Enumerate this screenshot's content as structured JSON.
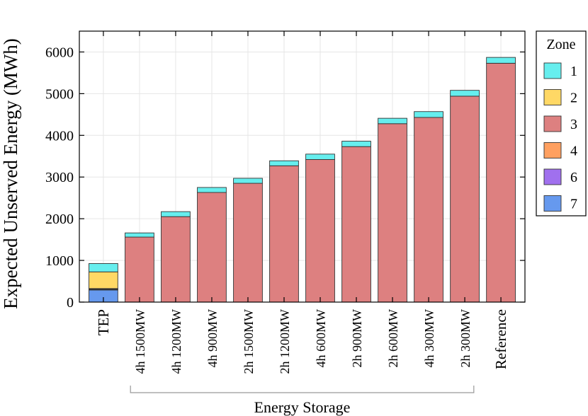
{
  "chart_data": {
    "type": "bar",
    "stacked": true,
    "title": "",
    "xlabel": "",
    "ylabel": "Expected Unserved Energy (MWh)",
    "ylim": [
      0,
      6500
    ],
    "yticks": [
      0,
      1000,
      2000,
      3000,
      4000,
      5000,
      6000
    ],
    "grid": true,
    "categories": [
      "TEP",
      "4h 1500MW",
      "4h 1200MW",
      "4h 900MW",
      "2h 1500MW",
      "2h 1200MW",
      "4h 600MW",
      "2h 900MW",
      "2h 600MW",
      "4h 300MW",
      "2h 300MW",
      "Reference"
    ],
    "group_label": {
      "text": "Energy Storage",
      "from": "4h 1500MW",
      "to": "2h 300MW"
    },
    "legend": {
      "title": "Zone",
      "position": "right"
    },
    "series": [
      {
        "name": "7",
        "color": "#6699ee",
        "values": [
          290,
          0,
          0,
          0,
          0,
          0,
          0,
          0,
          0,
          0,
          0,
          0
        ]
      },
      {
        "name": "6",
        "color": "#a070ee",
        "values": [
          15,
          0,
          0,
          0,
          0,
          0,
          0,
          0,
          0,
          0,
          0,
          0
        ]
      },
      {
        "name": "4",
        "color": "#ffa060",
        "values": [
          15,
          0,
          0,
          0,
          0,
          0,
          0,
          0,
          0,
          0,
          0,
          0
        ]
      },
      {
        "name": "3",
        "color": "#dd8080",
        "values": [
          5,
          1560,
          2050,
          2630,
          2850,
          3270,
          3420,
          3730,
          4280,
          4430,
          4940,
          5730
        ]
      },
      {
        "name": "2",
        "color": "#ffd865",
        "values": [
          400,
          0,
          0,
          0,
          0,
          0,
          0,
          0,
          0,
          0,
          0,
          0
        ]
      },
      {
        "name": "1",
        "color": "#66eeee",
        "values": [
          200,
          100,
          120,
          120,
          120,
          120,
          130,
          130,
          130,
          140,
          140,
          140
        ]
      }
    ]
  }
}
